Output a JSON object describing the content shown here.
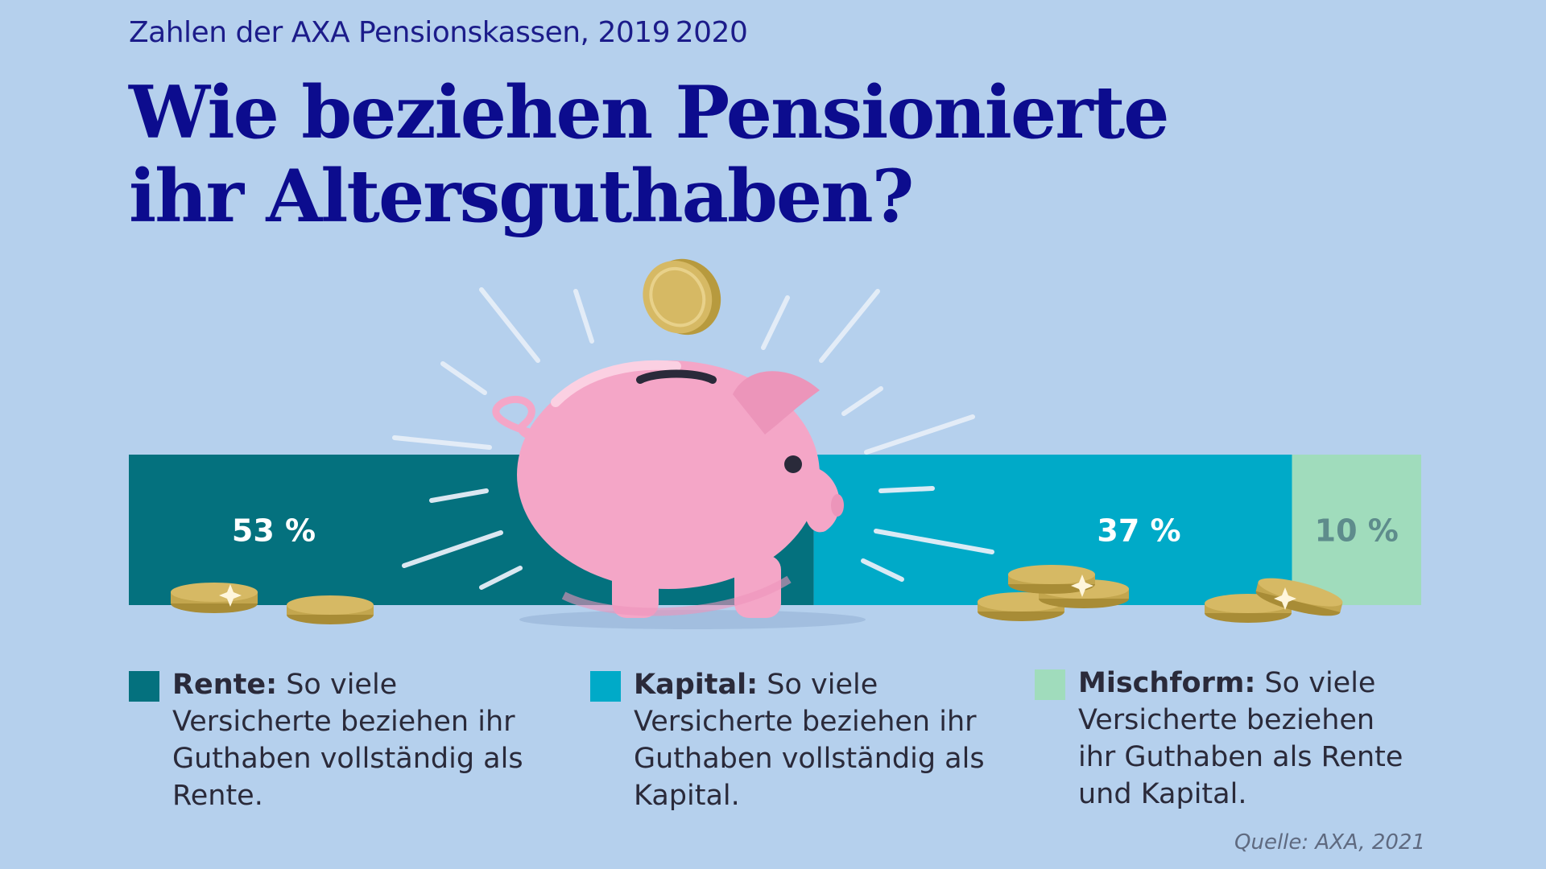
{
  "subtitle": "Zahlen der AXA Pensionskassen, 2019 2020",
  "title_line1": "Wie beziehen Pensionierte",
  "title_line2": "ihr Altersguthaben?",
  "colors": {
    "background": "#b5d0ed",
    "rente": "#04717e",
    "kapital": "#00aac8",
    "mischform": "#a0dcbc",
    "pig": "#f4a6c7",
    "coin": "#d6b964"
  },
  "chart_data": {
    "type": "bar",
    "stacked": true,
    "orientation": "horizontal",
    "categories": [
      "Rente",
      "Kapital",
      "Mischform"
    ],
    "values": [
      53,
      37,
      10
    ],
    "value_labels": [
      "53 %",
      "37 %",
      "10 %"
    ],
    "unit": "%",
    "total": 100
  },
  "legend": [
    {
      "key": "Rente:",
      "text": "So viele Versicherte beziehen ihr Guthaben vollständig als Rente."
    },
    {
      "key": "Kapital:",
      "text": "So viele Versicherte beziehen ihr Guthaben vollständig als Kapital."
    },
    {
      "key": "Mischform:",
      "text": "So viele Versicherte beziehen ihr Guthaben als Rente und Kapital."
    }
  ],
  "illustration": {
    "icon": "piggy-bank-icon",
    "coin_icon": "coin-icon"
  },
  "source": "Quelle: AXA, 2021"
}
